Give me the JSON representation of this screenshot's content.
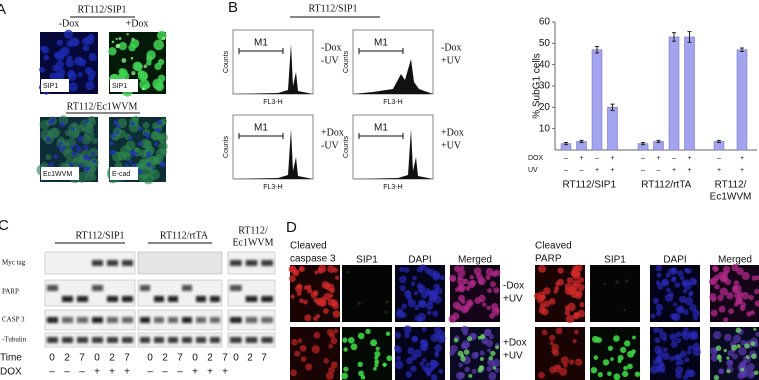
{
  "panel_a": {
    "letter": "A",
    "top_title": "RT112/SIP1",
    "conditions": [
      "-Dox",
      "+Dox"
    ],
    "top_image_labels": [
      "SIP1",
      "SIP1"
    ],
    "bottom_title": "RT112/Ec1WVM",
    "bottom_image_labels": [
      "Ec1WVM",
      "E-cad"
    ]
  },
  "panel_b": {
    "letter": "B",
    "title": "RT112/SIP1",
    "gate": "M1",
    "x_label": "FL3-H",
    "y_label": "Counts",
    "conditions": [
      [
        "-Dox",
        "-UV"
      ],
      [
        "-Dox",
        "+UV"
      ],
      [
        "+Dox",
        "-UV"
      ],
      [
        "+Dox",
        "+UV"
      ]
    ]
  },
  "chart_data": {
    "type": "bar",
    "y_label": "% SubG1 cells",
    "ylim": [
      0,
      60
    ],
    "yticks": [
      10,
      20,
      30,
      40,
      50,
      60
    ],
    "color": "#a3a3ee",
    "row_labels": [
      "DOX",
      "UV"
    ],
    "groups": [
      {
        "label": [
          "RT112/SIP1"
        ],
        "dox": [
          "–",
          "+",
          "–",
          "+"
        ],
        "uv": [
          "–",
          "–",
          "+",
          "+"
        ],
        "values": [
          3,
          4,
          47,
          20
        ],
        "errors": [
          0.5,
          0.5,
          1.5,
          1.5
        ]
      },
      {
        "label": [
          "RT112/rtTA"
        ],
        "dox": [
          "–",
          "+",
          "–",
          "+"
        ],
        "uv": [
          "–",
          "–",
          "+",
          "+"
        ],
        "values": [
          3,
          4,
          53,
          53
        ],
        "errors": [
          0.5,
          0.5,
          2,
          2.5
        ]
      },
      {
        "label": [
          "RT112/",
          "Ec1WVM"
        ],
        "dox": [
          "–",
          "+"
        ],
        "uv": [
          "+",
          "+"
        ],
        "values": [
          4,
          47
        ],
        "errors": [
          0.5,
          0.8
        ]
      }
    ]
  },
  "panel_c": {
    "letter": "C",
    "groups": [
      [
        "RT112/SIP1"
      ],
      [
        "RT112/rtTA"
      ],
      [
        "RT112/",
        "Ec1WVM"
      ]
    ],
    "rows": [
      "Myc tag",
      "PARP",
      "CASP 3",
      "-Tubulin"
    ],
    "time_label": "Time",
    "dox_label": "DOX",
    "time": [
      "0",
      "2",
      "7",
      "0",
      "2",
      "7",
      "0",
      "2",
      "7",
      "0",
      "2",
      "7",
      "0",
      "2",
      "7"
    ],
    "dox": [
      "–",
      "–",
      "–",
      "+",
      "+",
      "+",
      "–",
      "–",
      "–",
      "+",
      "+",
      "+"
    ]
  },
  "panel_d": {
    "letter": "D",
    "left_headers": [
      [
        "Cleaved",
        "caspase 3"
      ],
      [
        "SIP1"
      ],
      [
        "DAPI"
      ],
      [
        "Merged"
      ]
    ],
    "right_headers": [
      [
        "Cleaved",
        "PARP"
      ],
      [
        "SIP1"
      ],
      [
        "DAPI"
      ],
      [
        "Merged"
      ]
    ],
    "conditions": [
      [
        "-Dox",
        "+UV"
      ],
      [
        "+Dox",
        "+UV"
      ]
    ]
  }
}
